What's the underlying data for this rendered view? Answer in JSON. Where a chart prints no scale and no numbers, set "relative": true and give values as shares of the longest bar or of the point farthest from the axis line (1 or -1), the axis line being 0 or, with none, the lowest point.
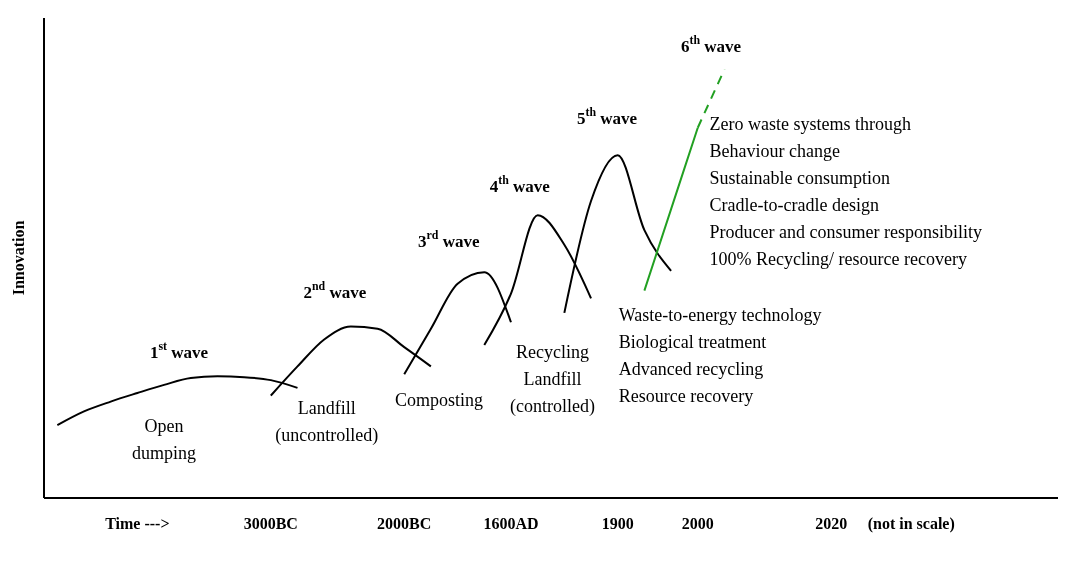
{
  "chart_data": {
    "type": "line",
    "relative": true,
    "ylabel": "Innovation",
    "categories": [
      null,
      null,
      null,
      "Time --->",
      null,
      null,
      null,
      null,
      "3000BC",
      null,
      null,
      null,
      null,
      "2000BC",
      null,
      null,
      null,
      "1600AD",
      null,
      null,
      null,
      "1900",
      null,
      null,
      "2000",
      null,
      null,
      null,
      null,
      "2020",
      null,
      null,
      "(not in scale)",
      null,
      null,
      null,
      null,
      null
    ],
    "series": [
      {
        "color": "#000000",
        "line_style": "solid",
        "values": [
          0.17,
          0.202,
          0.225,
          0.245,
          0.264,
          0.28,
          0.284,
          0.282,
          0.275,
          0.257,
          null,
          null,
          null,
          null,
          null,
          null,
          null,
          null,
          null,
          null,
          null,
          null,
          null,
          null,
          null,
          null,
          null,
          null,
          null,
          null,
          null,
          null,
          null,
          null,
          null,
          null,
          null,
          null
        ]
      },
      {
        "color": "#000000",
        "line_style": "solid",
        "values": [
          null,
          null,
          null,
          null,
          null,
          null,
          null,
          null,
          0.239,
          0.307,
          0.37,
          0.4,
          0.395,
          0.352,
          0.307,
          null,
          null,
          null,
          null,
          null,
          null,
          null,
          null,
          null,
          null,
          null,
          null,
          null,
          null,
          null,
          null,
          null,
          null,
          null,
          null,
          null,
          null,
          null
        ]
      },
      {
        "color": "#000000",
        "line_style": "solid",
        "values": [
          null,
          null,
          null,
          null,
          null,
          null,
          null,
          null,
          null,
          null,
          null,
          null,
          null,
          0.289,
          0.395,
          0.5,
          0.527,
          0.41,
          null,
          null,
          null,
          null,
          null,
          null,
          null,
          null,
          null,
          null,
          null,
          null,
          null,
          null,
          null,
          null,
          null,
          null,
          null,
          null
        ]
      },
      {
        "color": "#000000",
        "line_style": "solid",
        "values": [
          null,
          null,
          null,
          null,
          null,
          null,
          null,
          null,
          null,
          null,
          null,
          null,
          null,
          null,
          null,
          null,
          0.357,
          0.477,
          0.66,
          0.591,
          0.466,
          null,
          null,
          null,
          null,
          null,
          null,
          null,
          null,
          null,
          null,
          null,
          null,
          null,
          null,
          null,
          null,
          null
        ]
      },
      {
        "color": "#000000",
        "line_style": "solid",
        "values": [
          null,
          null,
          null,
          null,
          null,
          null,
          null,
          null,
          null,
          null,
          null,
          null,
          null,
          null,
          null,
          null,
          null,
          null,
          null,
          0.432,
          0.693,
          0.8,
          0.625,
          0.53,
          null,
          null,
          null,
          null,
          null,
          null,
          null,
          null,
          null,
          null,
          null,
          null,
          null,
          null
        ]
      },
      {
        "color": "#22a022",
        "line_style": "solid",
        "values": [
          null,
          null,
          null,
          null,
          null,
          null,
          null,
          null,
          null,
          null,
          null,
          null,
          null,
          null,
          null,
          null,
          null,
          null,
          null,
          null,
          null,
          null,
          0.484,
          0.674,
          0.864,
          null,
          null,
          null,
          null,
          null,
          null,
          null,
          null,
          null,
          null,
          null,
          null,
          null
        ]
      },
      {
        "color": "#22a022",
        "line_style": "dashed",
        "values": [
          null,
          null,
          null,
          null,
          null,
          null,
          null,
          null,
          null,
          null,
          null,
          null,
          null,
          null,
          null,
          null,
          null,
          null,
          null,
          null,
          null,
          null,
          null,
          null,
          0.864,
          1,
          null,
          null,
          null,
          null,
          null,
          null,
          null,
          null,
          null,
          null,
          null,
          null
        ]
      }
    ],
    "annotations": [
      "1$^{st}$ wave",
      "2$^{nd}$ wave",
      "3$^{rd}$ wave",
      "4$^{th}$ wave",
      "5$^{th}$ wave",
      "6$^{th}$ wave",
      "Open\ndumping",
      "Landfill\n(uncontrolled)",
      "Composting",
      "Recycling\nLandfill\n(controlled)",
      "Waste-to-energy technology\nBiological treatment\nAdvanced recycling\nResource recovery",
      "Zero waste systems  through\nBehaviour change\nSustainable consumption\nCradle-to-cradle design\nProducer and consumer responsibility\n100% Recycling/ resource recovery"
    ]
  }
}
